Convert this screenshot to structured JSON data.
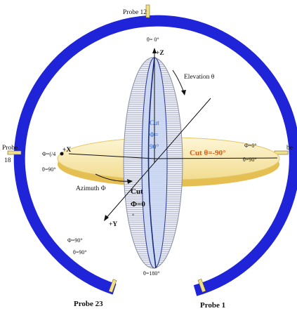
{
  "probes": {
    "top": "Probe 12",
    "left_line1": "Probe",
    "left_line2": "18",
    "right": "be",
    "bottom_left": "Probe 23",
    "bottom_right": "Probe 1"
  },
  "axes": {
    "z": "+Z",
    "x": "+X",
    "y": "+Y"
  },
  "angles": {
    "theta_top": "θ= 0°",
    "theta_bottom": "θ=180°",
    "elevation": "Elevation θ",
    "azimuth": "Azimuth Φ",
    "phi_left": "Φ=(/4",
    "theta_left": "θ=90°",
    "phi_right": "Φ=0°",
    "theta_right": "θ=90°",
    "phi_bottom": "Φ=90°",
    "theta_bottom_left": "θ=90°"
  },
  "cuts": {
    "vertical_line1": "Cut",
    "vertical_line2": "Φ=",
    "vertical_line3": "90°",
    "horizontal": "Cut θ=-90°",
    "front_line1": "Cut",
    "front_line2": "Φ=0",
    "front_line3": "°"
  },
  "colors": {
    "ring": "#1f24d8",
    "probe_marker": "#f0e08a",
    "disk_fill": "#f6e9b6",
    "disk_edge": "#e6bf52",
    "ellipse_fill": "#dfe3f2",
    "blue_cut": "#c9d6f2",
    "cut_text_blue": "#2c63c9",
    "cut_text_orange": "#d65a14"
  }
}
